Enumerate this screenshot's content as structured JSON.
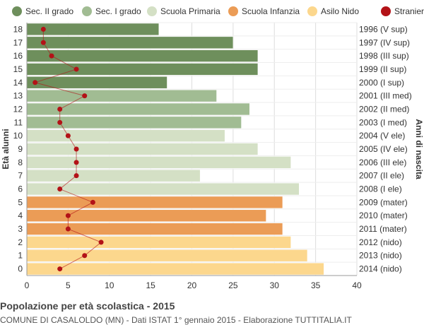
{
  "chart_data": {
    "type": "bar",
    "orientation": "horizontal",
    "title": "Popolazione per età scolastica - 2015",
    "subtitle": "COMUNE DI CASALOLDO (MN) - Dati ISTAT 1° gennaio 2015 - Elaborazione TUTTITALIA.IT",
    "ylabel": "Età alunni",
    "ylabel_right": "Anni di nascita",
    "xlim": [
      0,
      40
    ],
    "xticks": [
      0,
      5,
      10,
      15,
      20,
      25,
      30,
      35,
      40
    ],
    "grid": true,
    "legend_position": "top",
    "legend": [
      {
        "name": "Sec. II grado",
        "color": "#6e8f5c"
      },
      {
        "name": "Sec. I grado",
        "color": "#a1bc93"
      },
      {
        "name": "Scuola Primaria",
        "color": "#d4e0c5"
      },
      {
        "name": "Scuola Infanzia",
        "color": "#eb9c56"
      },
      {
        "name": "Asilo Nido",
        "color": "#fcd78d"
      },
      {
        "name": "Stranieri",
        "color": "#b31217"
      }
    ],
    "categories": [
      "18",
      "17",
      "16",
      "15",
      "14",
      "13",
      "12",
      "11",
      "10",
      "9",
      "8",
      "7",
      "6",
      "5",
      "4",
      "3",
      "2",
      "1",
      "0"
    ],
    "birth_years": [
      "1996 (V sup)",
      "1997 (IV sup)",
      "1998 (III sup)",
      "1999 (II sup)",
      "2000 (I sup)",
      "2001 (III med)",
      "2002 (II med)",
      "2003 (I med)",
      "2004 (V ele)",
      "2005 (IV ele)",
      "2006 (III ele)",
      "2007 (II ele)",
      "2008 (I ele)",
      "2009 (mater)",
      "2010 (mater)",
      "2011 (mater)",
      "2012 (nido)",
      "2013 (nido)",
      "2014 (nido)"
    ],
    "group": [
      "Sec. II grado",
      "Sec. II grado",
      "Sec. II grado",
      "Sec. II grado",
      "Sec. II grado",
      "Sec. I grado",
      "Sec. I grado",
      "Sec. I grado",
      "Scuola Primaria",
      "Scuola Primaria",
      "Scuola Primaria",
      "Scuola Primaria",
      "Scuola Primaria",
      "Scuola Infanzia",
      "Scuola Infanzia",
      "Scuola Infanzia",
      "Asilo Nido",
      "Asilo Nido",
      "Asilo Nido"
    ],
    "series": [
      {
        "name": "Alunni",
        "values": [
          16,
          25,
          28,
          28,
          17,
          23,
          27,
          26,
          24,
          28,
          32,
          21,
          33,
          31,
          29,
          31,
          32,
          34,
          36
        ]
      },
      {
        "name": "Stranieri",
        "values": [
          2,
          2,
          3,
          6,
          1,
          7,
          4,
          4,
          5,
          6,
          6,
          6,
          4,
          8,
          5,
          5,
          9,
          7,
          4
        ]
      }
    ]
  }
}
